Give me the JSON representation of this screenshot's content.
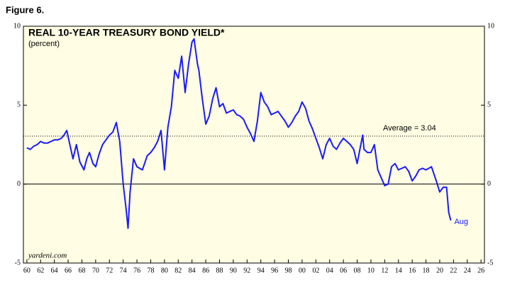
{
  "figure_label": "Figure 6.",
  "chart_data": {
    "type": "line",
    "title": "REAL 10-YEAR TREASURY BOND YIELD*",
    "subtitle": "(percent)",
    "source": "yardeni.com",
    "end_label": "Aug",
    "average": {
      "value": 3.04,
      "label": "Average = 3.04"
    },
    "xlim": [
      1959.5,
      2026.5
    ],
    "ylim": [
      -5,
      10
    ],
    "yticks": [
      -5,
      0,
      5,
      10
    ],
    "xticks": [
      {
        "value": 1960,
        "label": "60"
      },
      {
        "value": 1962,
        "label": "62"
      },
      {
        "value": 1964,
        "label": "64"
      },
      {
        "value": 1966,
        "label": "66"
      },
      {
        "value": 1968,
        "label": "68"
      },
      {
        "value": 1970,
        "label": "70"
      },
      {
        "value": 1972,
        "label": "72"
      },
      {
        "value": 1974,
        "label": "74"
      },
      {
        "value": 1976,
        "label": "76"
      },
      {
        "value": 1978,
        "label": "78"
      },
      {
        "value": 1980,
        "label": "80"
      },
      {
        "value": 1982,
        "label": "82"
      },
      {
        "value": 1984,
        "label": "84"
      },
      {
        "value": 1986,
        "label": "86"
      },
      {
        "value": 1988,
        "label": "88"
      },
      {
        "value": 1990,
        "label": "90"
      },
      {
        "value": 1992,
        "label": "92"
      },
      {
        "value": 1994,
        "label": "94"
      },
      {
        "value": 1996,
        "label": "96"
      },
      {
        "value": 1998,
        "label": "98"
      },
      {
        "value": 2000,
        "label": "00"
      },
      {
        "value": 2002,
        "label": "02"
      },
      {
        "value": 2004,
        "label": "04"
      },
      {
        "value": 2006,
        "label": "06"
      },
      {
        "value": 2008,
        "label": "08"
      },
      {
        "value": 2010,
        "label": "10"
      },
      {
        "value": 2012,
        "label": "12"
      },
      {
        "value": 2014,
        "label": "14"
      },
      {
        "value": 2016,
        "label": "16"
      },
      {
        "value": 2018,
        "label": "18"
      },
      {
        "value": 2020,
        "label": "20"
      },
      {
        "value": 2022,
        "label": "22"
      },
      {
        "value": 2024,
        "label": "24"
      },
      {
        "value": 2026,
        "label": "26"
      }
    ],
    "x": [
      1960,
      1960.5,
      1961,
      1961.5,
      1962,
      1962.5,
      1963,
      1963.5,
      1964,
      1964.5,
      1965,
      1965.4,
      1965.8,
      1966.2,
      1966.7,
      1967.2,
      1967.7,
      1968.3,
      1968.7,
      1969.1,
      1969.6,
      1970,
      1970.5,
      1971,
      1971.5,
      1972,
      1972.5,
      1973,
      1973.5,
      1974,
      1974.4,
      1974.7,
      1975,
      1975.5,
      1976,
      1976.8,
      1977.5,
      1978,
      1978.5,
      1979,
      1979.5,
      1980,
      1980.5,
      1981,
      1981.5,
      1982,
      1982.5,
      1983,
      1983.5,
      1984,
      1984.3,
      1984.8,
      1985,
      1985.5,
      1986,
      1986.5,
      1987,
      1987.5,
      1988,
      1988.5,
      1989,
      1989.5,
      1990,
      1990.5,
      1991,
      1991.5,
      1992,
      1992.5,
      1993,
      1993.5,
      1994,
      1994.5,
      1995,
      1995.5,
      1996,
      1996.5,
      1997,
      1997.5,
      1998,
      1998.5,
      1999,
      1999.5,
      2000,
      2000.5,
      2001,
      2001.5,
      2002,
      2002.5,
      2003,
      2003.5,
      2004,
      2004.5,
      2005,
      2005.5,
      2006,
      2006.5,
      2007,
      2007.5,
      2008,
      2008.8,
      2009,
      2009.5,
      2010,
      2010.5,
      2011,
      2011.5,
      2012,
      2012.5,
      2013,
      2013.5,
      2014,
      2014.5,
      2015,
      2015.5,
      2016,
      2016.5,
      2017,
      2017.5,
      2018,
      2018.8,
      2019.5,
      2020,
      2020.5,
      2021,
      2021.3,
      2021.6
    ],
    "series": [
      {
        "name": "Real 10-year yield",
        "color": "#1a1aff",
        "values": [
          2.3,
          2.2,
          2.4,
          2.5,
          2.7,
          2.6,
          2.6,
          2.7,
          2.8,
          2.8,
          2.9,
          3.1,
          3.4,
          2.6,
          1.6,
          2.5,
          1.4,
          0.9,
          1.6,
          2.0,
          1.3,
          1.1,
          1.9,
          2.5,
          2.8,
          3.1,
          3.3,
          3.9,
          2.7,
          0.0,
          -1.5,
          -2.8,
          -0.5,
          1.6,
          1.1,
          0.9,
          1.8,
          2.0,
          2.3,
          2.7,
          3.4,
          0.9,
          3.6,
          4.9,
          7.2,
          6.7,
          8.1,
          5.8,
          7.6,
          9.0,
          9.2,
          7.6,
          7.2,
          5.4,
          3.8,
          4.3,
          5.4,
          6.1,
          4.9,
          5.1,
          4.5,
          4.6,
          4.7,
          4.4,
          4.3,
          4.1,
          3.6,
          3.2,
          2.7,
          4.0,
          5.8,
          5.2,
          4.9,
          4.4,
          4.5,
          4.6,
          4.3,
          4.0,
          3.6,
          3.9,
          4.3,
          4.6,
          5.2,
          4.8,
          4.0,
          3.5,
          2.9,
          2.3,
          1.6,
          2.5,
          2.9,
          2.4,
          2.2,
          2.6,
          2.9,
          2.7,
          2.5,
          2.2,
          1.3,
          3.1,
          2.2,
          2.0,
          2.0,
          2.5,
          0.9,
          0.4,
          -0.1,
          0.0,
          1.1,
          1.3,
          0.9,
          1.0,
          1.1,
          0.8,
          0.2,
          0.5,
          0.9,
          1.0,
          0.9,
          1.1,
          0.2,
          -0.5,
          -0.2,
          -0.2,
          -1.8,
          -2.3
        ]
      }
    ]
  }
}
